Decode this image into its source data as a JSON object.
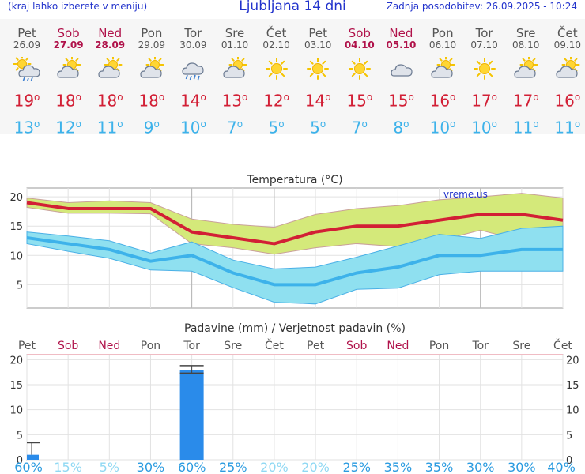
{
  "header": {
    "menu_hint": "(kraj lahko izberete v meniju)",
    "title": "Ljubljana 14 dni",
    "updated": "Zadnja posodobitev: 26.09.2025 - 10:24"
  },
  "days": [
    {
      "name": "Pet",
      "date": "26.09",
      "weekend": false,
      "icon": "sun-cloud-rain-icon",
      "max": "19",
      "min": "13"
    },
    {
      "name": "Sob",
      "date": "27.09",
      "weekend": true,
      "icon": "sun-cloud-icon",
      "max": "18",
      "min": "12"
    },
    {
      "name": "Ned",
      "date": "28.09",
      "weekend": true,
      "icon": "sun-cloud-icon",
      "max": "18",
      "min": "11"
    },
    {
      "name": "Pon",
      "date": "29.09",
      "weekend": false,
      "icon": "sun-cloud-icon",
      "max": "18",
      "min": "9"
    },
    {
      "name": "Tor",
      "date": "30.09",
      "weekend": false,
      "icon": "cloud-rain-icon",
      "max": "14",
      "min": "10"
    },
    {
      "name": "Sre",
      "date": "01.10",
      "weekend": false,
      "icon": "sun-cloud-icon",
      "max": "13",
      "min": "7"
    },
    {
      "name": "Čet",
      "date": "02.10",
      "weekend": false,
      "icon": "sun-icon",
      "max": "12",
      "min": "5"
    },
    {
      "name": "Pet",
      "date": "03.10",
      "weekend": false,
      "icon": "sun-icon",
      "max": "14",
      "min": "5"
    },
    {
      "name": "Sob",
      "date": "04.10",
      "weekend": true,
      "icon": "sun-icon",
      "max": "15",
      "min": "7"
    },
    {
      "name": "Ned",
      "date": "05.10",
      "weekend": true,
      "icon": "cloud-icon",
      "max": "15",
      "min": "8"
    },
    {
      "name": "Pon",
      "date": "06.10",
      "weekend": false,
      "icon": "sun-cloud-icon",
      "max": "16",
      "min": "10"
    },
    {
      "name": "Tor",
      "date": "07.10",
      "weekend": false,
      "icon": "sun-icon",
      "max": "17",
      "min": "10"
    },
    {
      "name": "Sre",
      "date": "08.10",
      "weekend": false,
      "icon": "sun-cloud-icon",
      "max": "17",
      "min": "11"
    },
    {
      "name": "Čet",
      "date": "09.10",
      "weekend": false,
      "icon": "sun-cloud-icon",
      "max": "16",
      "min": "11"
    }
  ],
  "degree_symbol": "o",
  "colors": {
    "title": "#2233cc",
    "max_temp": "#d21f35",
    "min_temp": "#3db2ea",
    "weekend": "#b0124a",
    "weekday": "#555555",
    "max_band": "#d4e97a",
    "min_band": "#8fe0f0",
    "bars": "#2a8bea"
  },
  "chart_data": [
    {
      "type": "line",
      "title": "Temperatura (°C)",
      "watermark": "vreme.us",
      "x": [
        "Pet",
        "Sob",
        "Ned",
        "Pon",
        "Tor",
        "Sre",
        "Čet",
        "Pet",
        "Sob",
        "Ned",
        "Pon",
        "Tor",
        "Sre",
        "Čet"
      ],
      "ylim": [
        1,
        21.5
      ],
      "yticks": [
        5,
        10,
        15,
        20
      ],
      "series": [
        {
          "role": "max",
          "values": [
            19,
            18,
            18,
            18,
            14,
            13,
            12,
            14,
            15,
            15,
            16,
            17,
            17,
            16
          ]
        },
        {
          "role": "min",
          "values": [
            13,
            12,
            11,
            9,
            10,
            7,
            5,
            5,
            7,
            8,
            10,
            10,
            11,
            11
          ]
        }
      ],
      "bands": [
        {
          "role": "max-range",
          "low": [
            18.2,
            17.2,
            17.2,
            17.1,
            12,
            11.3,
            10.2,
            11.3,
            12,
            11.5,
            12.5,
            14.3,
            12.5,
            13.5
          ],
          "high": [
            19.8,
            19,
            19.3,
            19,
            16.2,
            15.3,
            14.8,
            17,
            18,
            18.5,
            19.5,
            20,
            20.6,
            19.8
          ]
        },
        {
          "role": "min-range",
          "low": [
            12,
            10.7,
            9.5,
            7.5,
            7.3,
            4.5,
            2,
            1.7,
            4.2,
            4.4,
            6.7,
            7.3,
            7.3,
            7.3
          ],
          "high": [
            14,
            13.3,
            12.5,
            10.4,
            12.3,
            9.2,
            7.7,
            8,
            9.7,
            11.6,
            13.6,
            12.9,
            14.6,
            15
          ]
        }
      ],
      "grid": true
    },
    {
      "type": "bar",
      "title": "Padavine (mm) / Verjetnost padavin (%)",
      "categories": [
        "Pet",
        "Sob",
        "Ned",
        "Pon",
        "Tor",
        "Sre",
        "Čet",
        "Pet",
        "Sob",
        "Ned",
        "Pon",
        "Tor",
        "Sre",
        "Čet"
      ],
      "values": [
        1,
        0,
        0,
        0,
        18,
        0,
        0,
        0,
        0,
        0,
        0,
        0,
        0,
        0
      ],
      "error_high": [
        3.4,
        null,
        null,
        null,
        18.8,
        null,
        null,
        null,
        null,
        null,
        null,
        null,
        null,
        null
      ],
      "error_low": [
        null,
        null,
        null,
        null,
        17.3,
        null,
        null,
        null,
        null,
        null,
        null,
        null,
        null,
        null
      ],
      "probability": [
        "60%",
        "15%",
        "5%",
        "30%",
        "60%",
        "25%",
        "20%",
        "20%",
        "25%",
        "35%",
        "35%",
        "30%",
        "30%",
        "40%"
      ],
      "probability_strong": [
        true,
        false,
        false,
        true,
        true,
        true,
        false,
        false,
        true,
        true,
        true,
        true,
        true,
        true
      ],
      "ylim": [
        0,
        21
      ],
      "yticks": [
        0,
        5,
        10,
        15,
        20
      ],
      "grid": true
    }
  ]
}
